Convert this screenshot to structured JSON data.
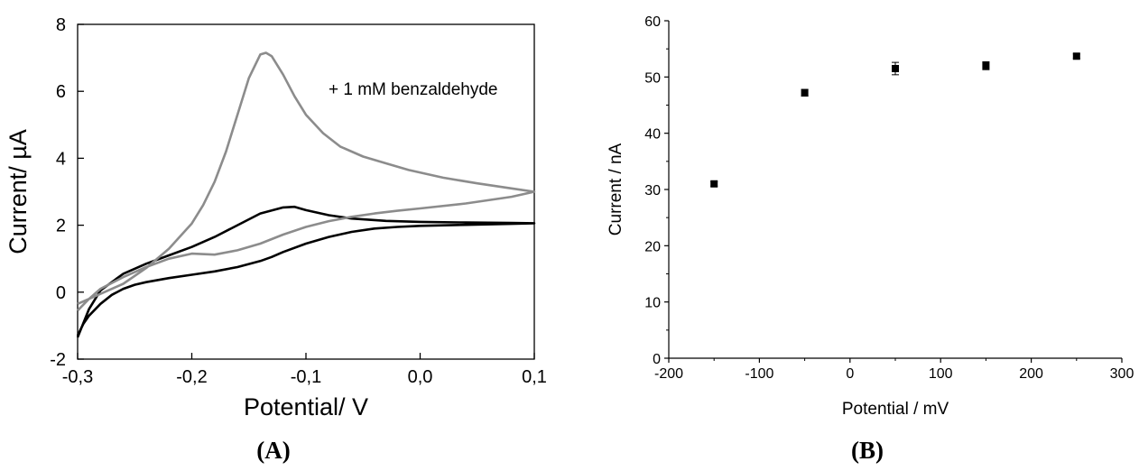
{
  "chart_data": [
    {
      "panel": "A",
      "type": "line",
      "title": "",
      "xlabel": "Potential/ V",
      "ylabel": "Current/ µA",
      "xlim": [
        -0.3,
        0.1
      ],
      "ylim": [
        -2,
        8
      ],
      "x_tick_labels": [
        "-0,3",
        "-0,2",
        "-0,1",
        "0,0",
        "0,1"
      ],
      "x_tick_values": [
        -0.3,
        -0.2,
        -0.1,
        0.0,
        0.1
      ],
      "y_tick_labels": [
        "-2",
        "0",
        "2",
        "4",
        "6",
        "8"
      ],
      "y_tick_values": [
        -2,
        0,
        2,
        4,
        6,
        8
      ],
      "grid": false,
      "annotation": "+ 1 mM benzaldehyde",
      "series": [
        {
          "color": "#000000",
          "points": [
            [
              -0.3,
              -1.3
            ],
            [
              -0.295,
              -0.95
            ],
            [
              -0.29,
              -0.7
            ],
            [
              -0.28,
              -0.35
            ],
            [
              -0.27,
              -0.08
            ],
            [
              -0.26,
              0.1
            ],
            [
              -0.25,
              0.22
            ],
            [
              -0.24,
              0.3
            ],
            [
              -0.22,
              0.42
            ],
            [
              -0.2,
              0.52
            ],
            [
              -0.18,
              0.62
            ],
            [
              -0.16,
              0.75
            ],
            [
              -0.14,
              0.93
            ],
            [
              -0.13,
              1.05
            ],
            [
              -0.12,
              1.2
            ],
            [
              -0.1,
              1.45
            ],
            [
              -0.08,
              1.65
            ],
            [
              -0.06,
              1.8
            ],
            [
              -0.04,
              1.9
            ],
            [
              -0.02,
              1.95
            ],
            [
              0.0,
              1.98
            ],
            [
              0.04,
              2.01
            ],
            [
              0.08,
              2.04
            ],
            [
              0.1,
              2.06
            ],
            [
              0.08,
              2.07
            ],
            [
              0.04,
              2.08
            ],
            [
              0.0,
              2.1
            ],
            [
              -0.03,
              2.13
            ],
            [
              -0.06,
              2.2
            ],
            [
              -0.08,
              2.3
            ],
            [
              -0.1,
              2.45
            ],
            [
              -0.11,
              2.55
            ],
            [
              -0.12,
              2.53
            ],
            [
              -0.14,
              2.35
            ],
            [
              -0.16,
              2.0
            ],
            [
              -0.18,
              1.65
            ],
            [
              -0.2,
              1.35
            ],
            [
              -0.22,
              1.1
            ],
            [
              -0.24,
              0.85
            ],
            [
              -0.26,
              0.55
            ],
            [
              -0.28,
              0.05
            ],
            [
              -0.29,
              -0.5
            ],
            [
              -0.3,
              -1.35
            ]
          ]
        },
        {
          "color": "#8c8c8c",
          "points": [
            [
              -0.3,
              -0.55
            ],
            [
              -0.29,
              -0.2
            ],
            [
              -0.28,
              0.1
            ],
            [
              -0.26,
              0.45
            ],
            [
              -0.24,
              0.75
            ],
            [
              -0.22,
              1.0
            ],
            [
              -0.2,
              1.15
            ],
            [
              -0.18,
              1.12
            ],
            [
              -0.16,
              1.25
            ],
            [
              -0.14,
              1.45
            ],
            [
              -0.12,
              1.72
            ],
            [
              -0.1,
              1.95
            ],
            [
              -0.08,
              2.12
            ],
            [
              -0.06,
              2.25
            ],
            [
              -0.04,
              2.35
            ],
            [
              -0.02,
              2.43
            ],
            [
              0.0,
              2.5
            ],
            [
              0.04,
              2.65
            ],
            [
              0.08,
              2.85
            ],
            [
              0.1,
              3.0
            ],
            [
              0.08,
              3.1
            ],
            [
              0.05,
              3.25
            ],
            [
              0.02,
              3.42
            ],
            [
              -0.01,
              3.65
            ],
            [
              -0.03,
              3.85
            ],
            [
              -0.05,
              4.05
            ],
            [
              -0.07,
              4.35
            ],
            [
              -0.085,
              4.75
            ],
            [
              -0.1,
              5.3
            ],
            [
              -0.11,
              5.85
            ],
            [
              -0.12,
              6.5
            ],
            [
              -0.13,
              7.05
            ],
            [
              -0.135,
              7.15
            ],
            [
              -0.14,
              7.1
            ],
            [
              -0.15,
              6.4
            ],
            [
              -0.16,
              5.3
            ],
            [
              -0.17,
              4.2
            ],
            [
              -0.18,
              3.3
            ],
            [
              -0.19,
              2.6
            ],
            [
              -0.2,
              2.05
            ],
            [
              -0.22,
              1.3
            ],
            [
              -0.24,
              0.72
            ],
            [
              -0.26,
              0.25
            ],
            [
              -0.28,
              -0.05
            ],
            [
              -0.3,
              -0.35
            ]
          ]
        }
      ]
    },
    {
      "panel": "B",
      "type": "scatter",
      "title": "",
      "xlabel": "Potential / mV",
      "ylabel": "Current / nA",
      "xlim": [
        -200,
        300
      ],
      "ylim": [
        0,
        60
      ],
      "x_tick_labels": [
        "-200",
        "-100",
        "0",
        "100",
        "200",
        "300"
      ],
      "x_tick_values": [
        -200,
        -100,
        0,
        100,
        200,
        300
      ],
      "y_tick_labels": [
        "0",
        "10",
        "20",
        "30",
        "40",
        "50",
        "60"
      ],
      "y_tick_values": [
        0,
        10,
        20,
        30,
        40,
        50,
        60
      ],
      "grid": false,
      "series": [
        {
          "color": "#000000",
          "x": [
            -150,
            -50,
            50,
            150,
            250
          ],
          "y": [
            31.0,
            47.2,
            51.5,
            52.0,
            53.7
          ],
          "error": [
            0.4,
            0.6,
            1.1,
            0.7,
            0.4
          ]
        }
      ]
    }
  ],
  "labels": {
    "panel_a": "(A)",
    "panel_b": "(B)"
  }
}
